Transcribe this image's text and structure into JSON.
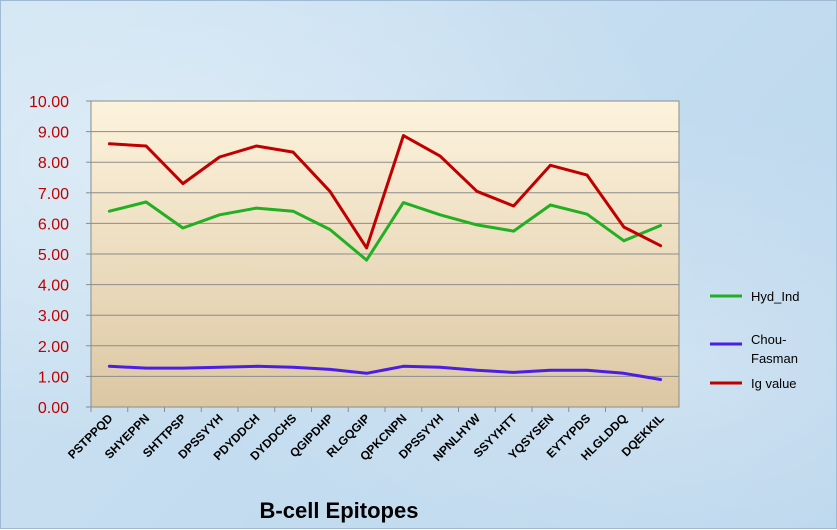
{
  "chart_data": {
    "type": "line",
    "categories": [
      "PSTPPQD",
      "SHYEPPN",
      "SHTTPSP",
      "DPSSYYH",
      "PDYDDCH",
      "DYDDCHS",
      "QGIPDHP",
      "RLGQGIP",
      "QPKCNPN",
      "DPSSYYH",
      "NPNLHYW",
      "SSYYHTT",
      "YQSYSEN",
      "EYTYPDS",
      "HLGLDDQ",
      "DQEKKIL"
    ],
    "series": [
      {
        "name": "Hyd_Ind",
        "color": "#22b022",
        "values": [
          6.4,
          6.7,
          5.85,
          6.28,
          6.5,
          6.4,
          5.8,
          4.8,
          6.68,
          6.28,
          5.95,
          5.75,
          6.6,
          6.3,
          5.43,
          5.93
        ]
      },
      {
        "name": "Chou-Fasman",
        "color": "#4b1ee6",
        "values": [
          1.33,
          1.27,
          1.27,
          1.3,
          1.33,
          1.3,
          1.23,
          1.1,
          1.33,
          1.3,
          1.2,
          1.13,
          1.2,
          1.2,
          1.1,
          0.9
        ]
      },
      {
        "name": "Ig value",
        "color": "#c00000",
        "values": [
          8.6,
          8.53,
          7.3,
          8.17,
          8.53,
          8.33,
          7.05,
          5.2,
          8.87,
          8.2,
          7.05,
          6.57,
          7.9,
          7.58,
          5.88,
          5.27
        ]
      }
    ],
    "yticks": [
      "0.00",
      "1.00",
      "2.00",
      "3.00",
      "4.00",
      "5.00",
      "6.00",
      "7.00",
      "8.00",
      "9.00",
      "10.00"
    ],
    "ylim": [
      0,
      10
    ],
    "xlabel": "B-cell Epitopes",
    "ylabel": "",
    "grid": true,
    "legend_position": "right"
  },
  "legend": {
    "hyd": "Hyd_Ind",
    "chou_line1": "Chou-",
    "chou_line2": "Fasman",
    "ig": "Ig value"
  }
}
